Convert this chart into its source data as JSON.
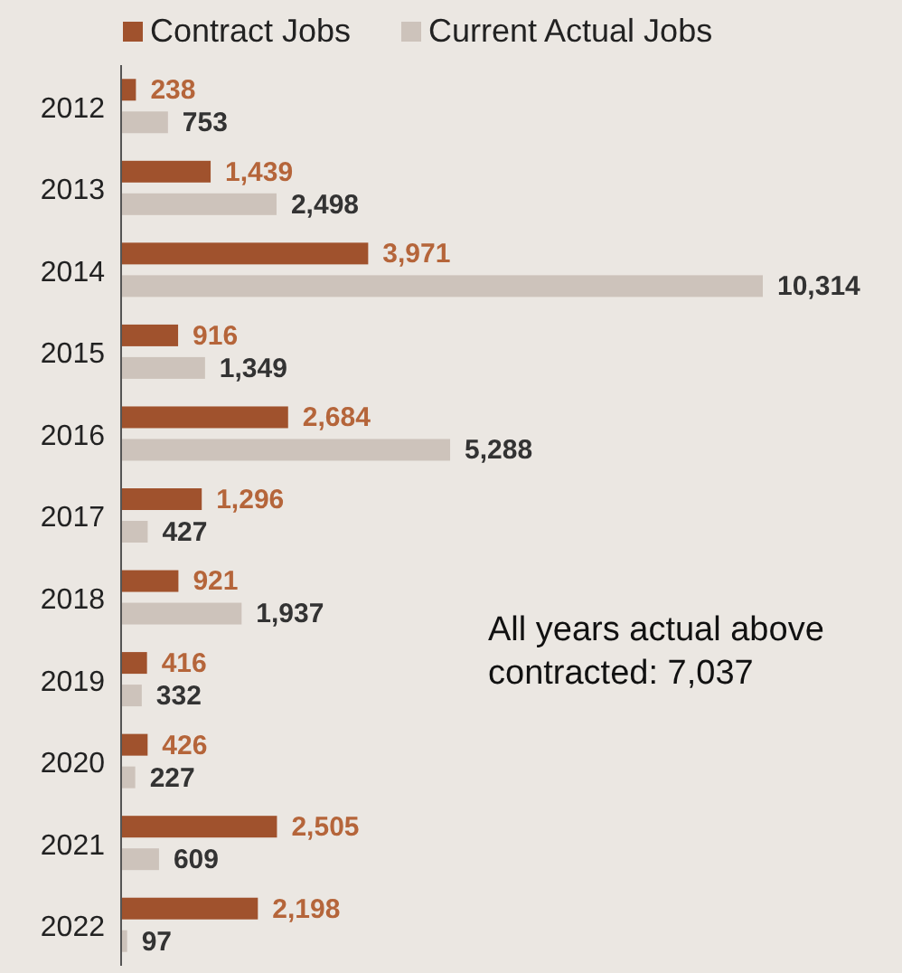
{
  "chart_data": {
    "type": "bar",
    "orientation": "horizontal",
    "categories": [
      "2012",
      "2013",
      "2014",
      "2015",
      "2016",
      "2017",
      "2018",
      "2019",
      "2020",
      "2021",
      "2022"
    ],
    "series": [
      {
        "name": "Contract Jobs",
        "color": "#a0522d",
        "values": [
          238,
          1439,
          3971,
          916,
          2684,
          1296,
          921,
          416,
          426,
          2505,
          2198
        ],
        "value_labels": [
          "238",
          "1,439",
          "3,971",
          "916",
          "2,684",
          "1,296",
          "921",
          "416",
          "426",
          "2,505",
          "2,198"
        ]
      },
      {
        "name": "Current Actual Jobs",
        "color": "#cdc3bb",
        "values": [
          753,
          2498,
          10314,
          1349,
          5288,
          427,
          1937,
          332,
          227,
          609,
          97
        ],
        "value_labels": [
          "753",
          "2,498",
          "10,314",
          "1,349",
          "5,288",
          "427",
          "1,937",
          "332",
          "227",
          "609",
          "97"
        ]
      }
    ],
    "legend": "top",
    "annotations": [
      "All years actual above contracted: 7,037"
    ]
  }
}
